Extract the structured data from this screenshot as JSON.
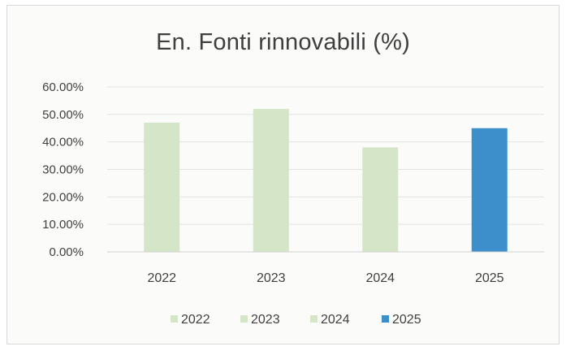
{
  "chart_data": {
    "type": "bar",
    "title": "En. Fonti rinnovabili (%)",
    "categories": [
      "2022",
      "2023",
      "2024",
      "2025"
    ],
    "series": [
      {
        "name": "2022",
        "color": "#d5e5c8",
        "values": [
          0.47,
          null,
          null,
          null
        ]
      },
      {
        "name": "2023",
        "color": "#d5e5c8",
        "values": [
          null,
          0.52,
          null,
          null
        ]
      },
      {
        "name": "2024",
        "color": "#d5e5c8",
        "values": [
          null,
          null,
          0.38,
          null
        ]
      },
      {
        "name": "2025",
        "color": "#3d8fcc",
        "values": [
          null,
          null,
          null,
          0.45
        ]
      }
    ],
    "ylim": [
      0,
      0.6
    ],
    "y_ticks": [
      "0.00%",
      "10.00%",
      "20.00%",
      "30.00%",
      "40.00%",
      "50.00%",
      "60.00%"
    ],
    "y_tick_values": [
      0,
      0.1,
      0.2,
      0.3,
      0.4,
      0.5,
      0.6
    ],
    "grid": true,
    "legend_position": "bottom",
    "xlabel": "",
    "ylabel": ""
  }
}
